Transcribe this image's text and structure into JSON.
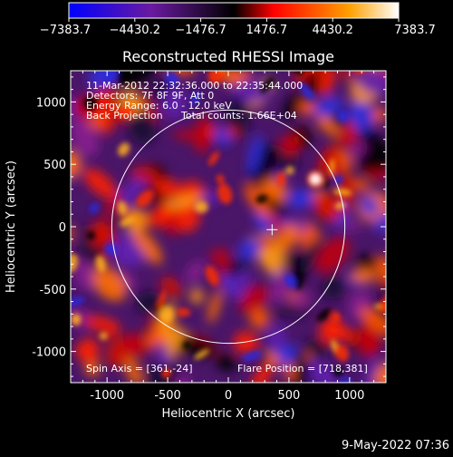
{
  "chart_data": {
    "type": "heatmap",
    "title": "Reconstructed RHESSI Image",
    "xlabel": "Heliocentric X (arcsec)",
    "ylabel": "Heliocentric Y (arcsec)",
    "xlim": [
      -1300,
      1300
    ],
    "ylim": [
      -1250,
      1250
    ],
    "x_ticks": [
      -1000,
      -500,
      0,
      500,
      1000
    ],
    "y_ticks": [
      -1000,
      -500,
      0,
      500,
      1000
    ],
    "colorbar": {
      "min": -7383.7,
      "max": 7383.7,
      "tick_labels": [
        "−7383.7",
        "−4430.2",
        "−1476.7",
        "1476.7",
        "4430.2",
        "7383.7"
      ]
    },
    "annotations": {
      "time": "11-Mar-2012 22:32:36.000 to 22:35:44.000",
      "detectors": "Detectors: 7F 8F 9F, Att 0",
      "energy": "Energy Range: 6.0 - 12.0 keV",
      "method": "Back Projection",
      "counts": "Total counts: 1.66E+04",
      "spin_axis": "Spin Axis = [361,-24]",
      "flare_position": "Flare Position = [718,381]"
    },
    "solar_disk": {
      "center": [
        0,
        0
      ],
      "radius": 961
    },
    "spin_axis_marker": [
      361,
      -24
    ],
    "flare_position": [
      718,
      381
    ],
    "footer_date": "9-May-2022 07:36"
  }
}
